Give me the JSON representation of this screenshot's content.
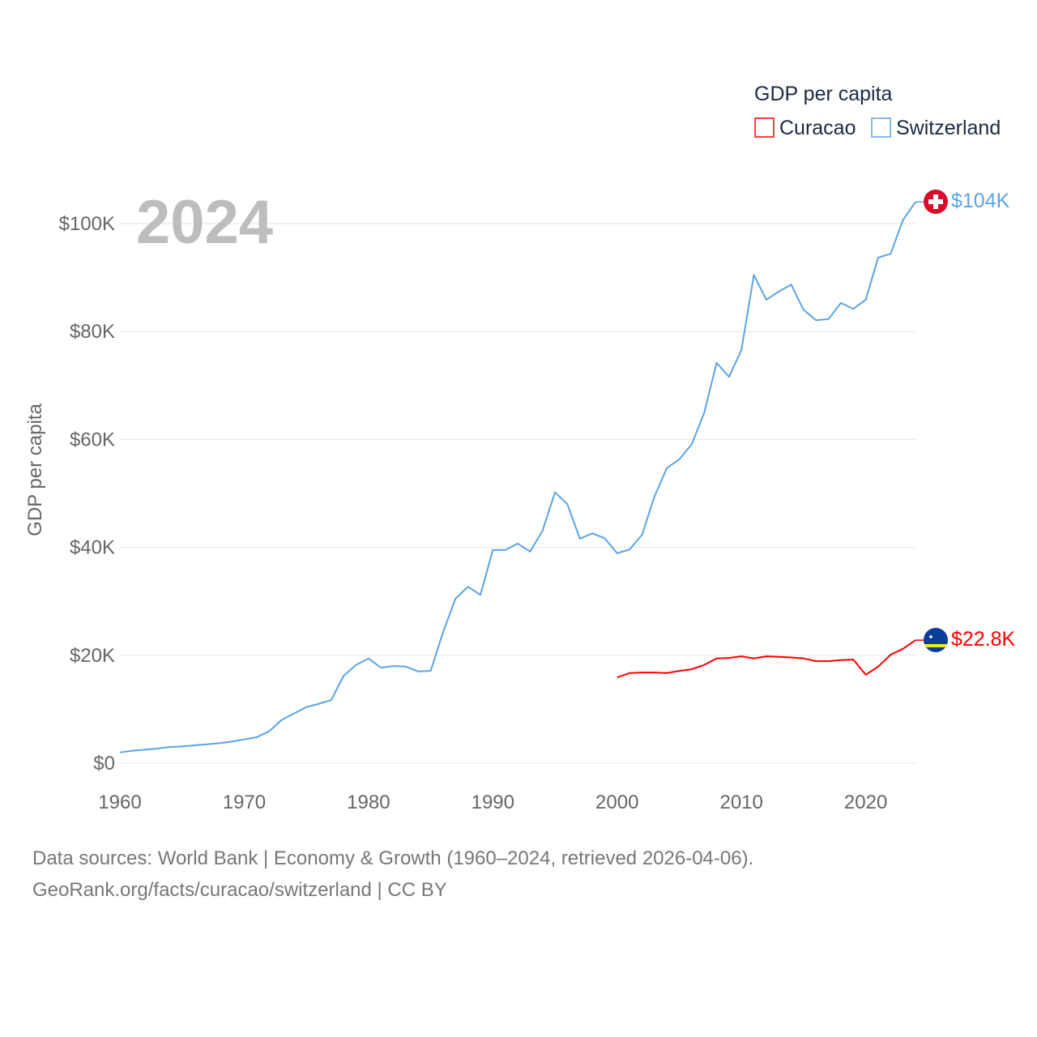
{
  "chart_data": {
    "type": "line",
    "title": "2024",
    "ylabel": "GDP per capita",
    "xlabel": "",
    "xlim": [
      1960,
      2024
    ],
    "ylim": [
      0,
      104
    ],
    "grid": true,
    "legend": {
      "title": "GDP per capita",
      "placement": "top-right"
    },
    "xticks": [
      1960,
      1970,
      1980,
      1990,
      2000,
      2010,
      2020
    ],
    "xtick_labels": [
      "1960",
      "1970",
      "1980",
      "1990",
      "2000",
      "2010",
      "2020"
    ],
    "yticks": [
      0,
      20,
      40,
      60,
      80,
      100
    ],
    "ytick_labels": [
      "$0",
      "$20K",
      "$40K",
      "$60K",
      "$80K",
      "$100K"
    ],
    "series": [
      {
        "name": "Curacao",
        "color": "#ff0000",
        "end_label": "$22.8K",
        "x": [
          2000,
          2001,
          2002,
          2003,
          2004,
          2005,
          2006,
          2007,
          2008,
          2009,
          2010,
          2011,
          2012,
          2013,
          2014,
          2015,
          2016,
          2017,
          2018,
          2019,
          2020,
          2021,
          2022,
          2023,
          2024
        ],
        "values": [
          15.9,
          16.7,
          16.8,
          16.8,
          16.7,
          17.1,
          17.4,
          18.2,
          19.4,
          19.5,
          19.8,
          19.4,
          19.8,
          19.7,
          19.6,
          19.4,
          18.9,
          18.9,
          19.1,
          19.2,
          16.4,
          17.9,
          20.1,
          21.2,
          22.8
        ]
      },
      {
        "name": "Switzerland",
        "color": "#5ba4e6",
        "end_label": "$104K",
        "x": [
          1960,
          1961,
          1962,
          1963,
          1964,
          1965,
          1966,
          1967,
          1968,
          1969,
          1970,
          1971,
          1972,
          1973,
          1974,
          1975,
          1976,
          1977,
          1978,
          1979,
          1980,
          1981,
          1982,
          1983,
          1984,
          1985,
          1986,
          1987,
          1988,
          1989,
          1990,
          1991,
          1992,
          1993,
          1994,
          1995,
          1996,
          1997,
          1998,
          1999,
          2000,
          2001,
          2002,
          2003,
          2004,
          2005,
          2006,
          2007,
          2008,
          2009,
          2010,
          2011,
          2012,
          2013,
          2014,
          2015,
          2016,
          2017,
          2018,
          2019,
          2020,
          2021,
          2022,
          2023,
          2024
        ],
        "values": [
          2.0,
          2.3,
          2.5,
          2.7,
          3.0,
          3.1,
          3.3,
          3.5,
          3.7,
          4.0,
          4.4,
          4.8,
          5.9,
          8.0,
          9.2,
          10.4,
          11.0,
          11.7,
          16.2,
          18.2,
          19.4,
          17.7,
          18.0,
          17.9,
          17.0,
          17.1,
          24.3,
          30.5,
          32.7,
          31.2,
          39.5,
          39.5,
          40.7,
          39.2,
          43.1,
          50.2,
          48.0,
          41.6,
          42.6,
          41.7,
          38.9,
          39.6,
          42.3,
          49.4,
          54.7,
          56.3,
          59.1,
          64.9,
          74.2,
          71.6,
          76.6,
          90.5,
          85.9,
          87.4,
          88.7,
          84.0,
          82.1,
          82.3,
          85.3,
          84.2,
          85.9,
          93.7,
          94.4,
          100.7,
          104.0
        ]
      }
    ]
  },
  "footer": {
    "line1": "Data sources: World Bank | Economy & Growth (1960–2024, retrieved 2026-04-06).",
    "line2": "GeoRank.org/facts/curacao/switzerland | CC BY"
  }
}
